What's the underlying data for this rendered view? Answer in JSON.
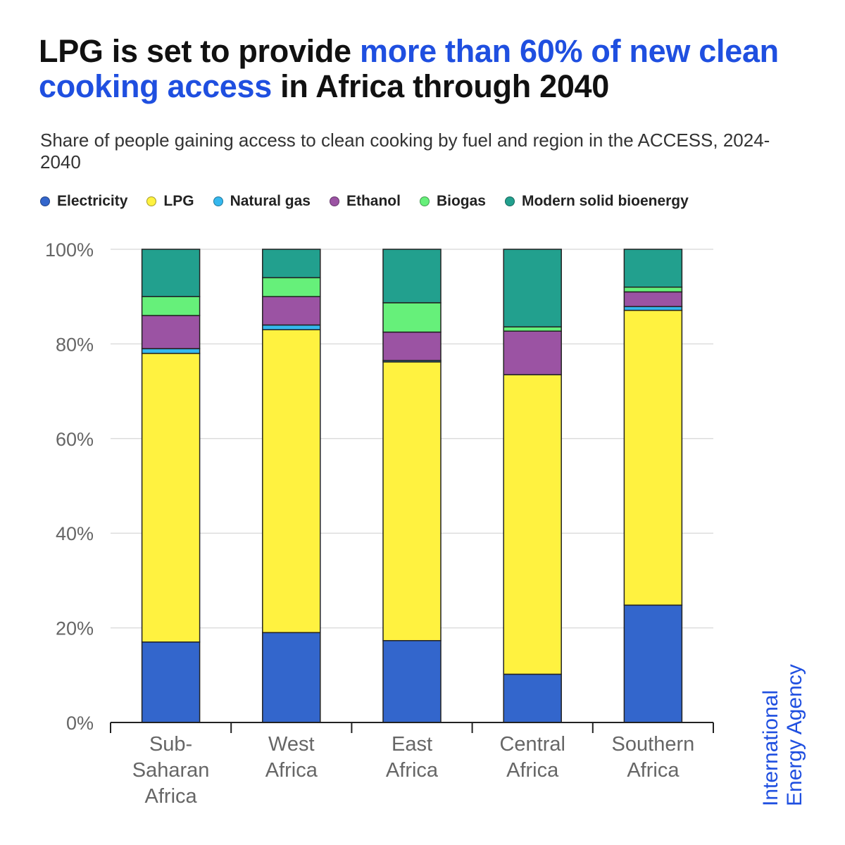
{
  "header": {
    "title_part1": "LPG is set to provide ",
    "title_highlight": "more than 60% of new clean cooking access",
    "title_part2": " in Africa through 2040",
    "subtitle": "Share of people gaining access to clean cooking by fuel and region in the ACCESS, 2024-2040"
  },
  "logo": {
    "line1": "International",
    "line2": "Energy Agency"
  },
  "colors": {
    "accent": "#1f4fe0",
    "Electricity": "#3366cc",
    "LPG": "#fff240",
    "Natural gas": "#35b8ee",
    "Ethanol": "#9b53a3",
    "Biogas": "#66f07a",
    "Modern solid bioenergy": "#22a08e"
  },
  "chart_data": {
    "type": "bar",
    "stacked": true,
    "title": "LPG is set to provide more than 60% of new clean cooking access in Africa through 2040",
    "subtitle": "Share of people gaining access to clean cooking by fuel and region in the ACCESS, 2024-2040",
    "categories": [
      "Sub-Saharan Africa",
      "West Africa",
      "East Africa",
      "Central Africa",
      "Southern Africa"
    ],
    "category_label_lines": [
      [
        "Sub-",
        "Saharan",
        "Africa"
      ],
      [
        "West",
        "Africa"
      ],
      [
        "East",
        "Africa"
      ],
      [
        "Central",
        "Africa"
      ],
      [
        "Southern",
        "Africa"
      ]
    ],
    "series": [
      {
        "name": "Electricity",
        "values": [
          17,
          19,
          17.3,
          10.2,
          24.8
        ]
      },
      {
        "name": "LPG",
        "values": [
          61,
          64,
          58.9,
          63.3,
          62.3
        ]
      },
      {
        "name": "Natural gas",
        "values": [
          1,
          1,
          0.3,
          0,
          0.8
        ]
      },
      {
        "name": "Ethanol",
        "values": [
          7,
          6,
          6,
          9.2,
          3.1
        ]
      },
      {
        "name": "Biogas",
        "values": [
          4,
          4,
          6.2,
          0.9,
          1
        ]
      },
      {
        "name": "Modern solid bioenergy",
        "values": [
          10,
          6,
          11.3,
          16.4,
          8
        ]
      }
    ],
    "y_ticks": [
      "0%",
      "20%",
      "40%",
      "60%",
      "80%",
      "100%"
    ],
    "ylim": [
      0,
      100
    ],
    "xlabel": "",
    "ylabel": "",
    "grid": true,
    "legend_position": "top"
  }
}
